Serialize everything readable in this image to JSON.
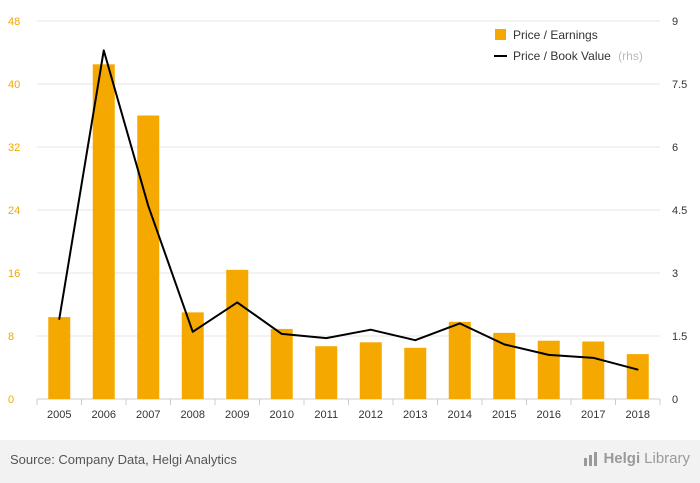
{
  "chart_data": {
    "type": "bar",
    "categories": [
      "2005",
      "2006",
      "2007",
      "2008",
      "2009",
      "2010",
      "2011",
      "2012",
      "2013",
      "2014",
      "2015",
      "2016",
      "2017",
      "2018"
    ],
    "series": [
      {
        "name": "Price / Earnings",
        "type": "bar",
        "axis": "left",
        "color": "#f5a800",
        "values": [
          10.4,
          42.5,
          36.0,
          11.0,
          16.4,
          8.9,
          6.7,
          7.2,
          6.5,
          9.8,
          8.4,
          7.4,
          7.3,
          5.7
        ]
      },
      {
        "name": "Price / Book Value",
        "name_suffix": "(rhs)",
        "type": "line",
        "axis": "right",
        "color": "#000000",
        "values": [
          1.9,
          8.3,
          4.6,
          1.6,
          2.3,
          1.55,
          1.45,
          1.65,
          1.4,
          1.8,
          1.3,
          1.05,
          0.98,
          0.7
        ]
      }
    ],
    "y_left": {
      "ticks": [
        "0",
        "8",
        "16",
        "24",
        "32",
        "40",
        "48"
      ],
      "min": 0,
      "max": 48
    },
    "y_right": {
      "ticks": [
        "0",
        "1.5",
        "3",
        "4.5",
        "6",
        "7.5",
        "9"
      ],
      "min": 0,
      "max": 9
    },
    "grid": true,
    "legend_position": "top-right",
    "title": "",
    "xlabel": "",
    "ylabel": ""
  },
  "footer": {
    "source": "Source: Company Data, Helgi Analytics",
    "brand_name": "Helgi",
    "brand_suffix": "Library",
    "brand_icon": "bar-chart-icon"
  }
}
